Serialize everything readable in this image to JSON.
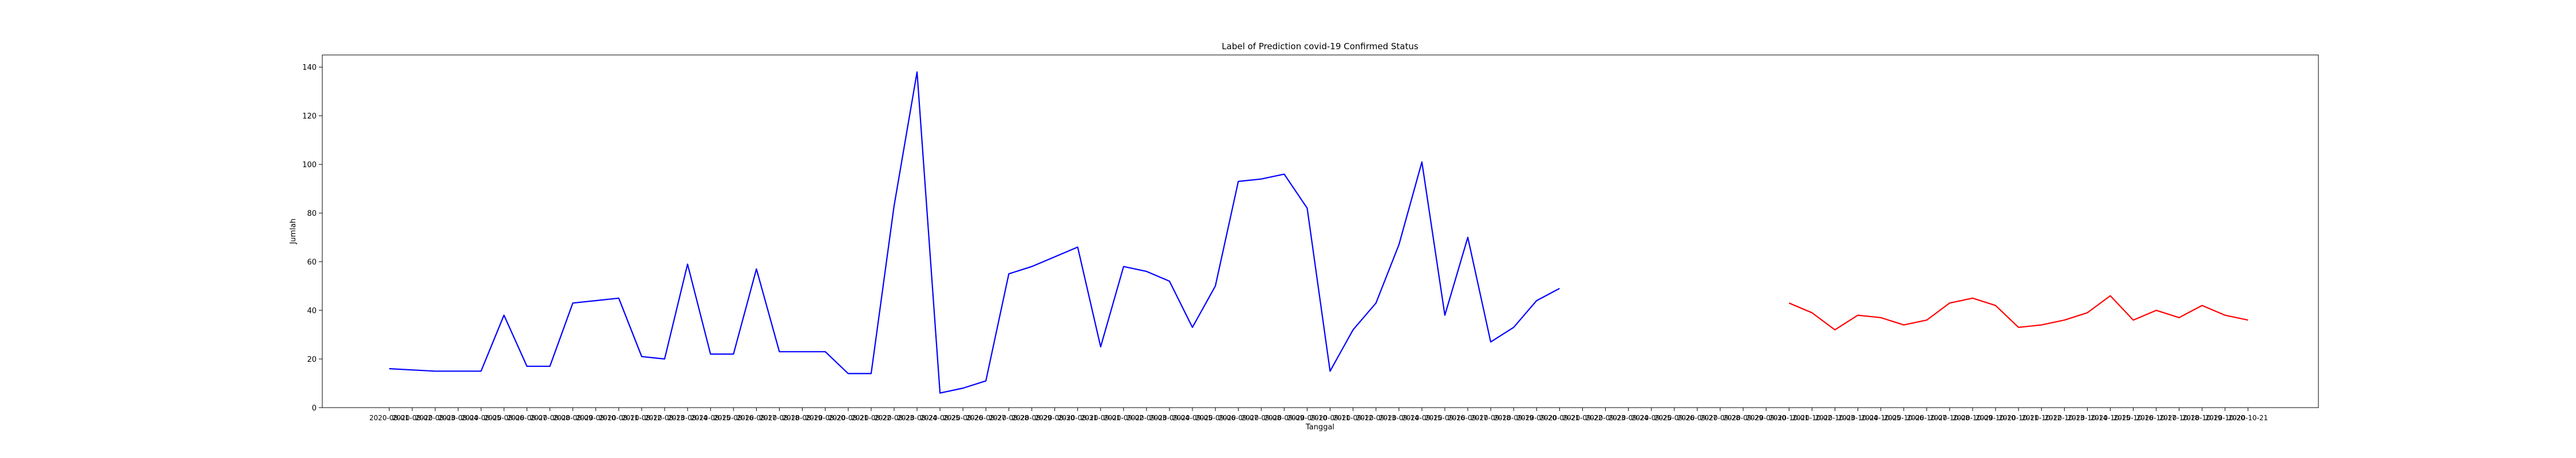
{
  "chart_data": {
    "type": "line",
    "title": "Label of Prediction covid-19 Confirmed Status",
    "xlabel": "Tanggal",
    "ylabel": "Jumlah",
    "ylim": [
      0,
      145
    ],
    "yticks": [
      0,
      20,
      40,
      60,
      80,
      100,
      120,
      140
    ],
    "grid": false,
    "series": [
      {
        "color": "#0000ff",
        "x": [
          "2020-08-01",
          "2020-08-02",
          "2020-08-03",
          "2020-08-04",
          "2020-08-05",
          "2020-08-06",
          "2020-08-07",
          "2020-08-08",
          "2020-08-09",
          "2020-08-10",
          "2020-08-11",
          "2020-08-12",
          "2020-08-13",
          "2020-08-14",
          "2020-08-15",
          "2020-08-16",
          "2020-08-17",
          "2020-08-18",
          "2020-08-19",
          "2020-08-20",
          "2020-08-21",
          "2020-08-22",
          "2020-08-23",
          "2020-08-24",
          "2020-08-25",
          "2020-08-26",
          "2020-08-27",
          "2020-08-28",
          "2020-08-29",
          "2020-08-30",
          "2020-08-31",
          "2020-09-01",
          "2020-09-02",
          "2020-09-03",
          "2020-09-04",
          "2020-09-05",
          "2020-09-06",
          "2020-09-07",
          "2020-09-08",
          "2020-09-09",
          "2020-09-10",
          "2020-09-11",
          "2020-09-12",
          "2020-09-13",
          "2020-09-14",
          "2020-09-15",
          "2020-09-16",
          "2020-09-17",
          "2020-09-18",
          "2020-09-19",
          "2020-09-20",
          "2020-09-21",
          "2020-09-22",
          "2020-09-23",
          "2020-09-24",
          "2020-09-25",
          "2020-09-26",
          "2020-09-27",
          "2020-09-28",
          "2020-09-29",
          "2020-09-30"
        ],
        "values": [
          16,
          15.5,
          15,
          15,
          15,
          38,
          17,
          17,
          43,
          44,
          45,
          21,
          20,
          59,
          22,
          22,
          57,
          23,
          23,
          23,
          14,
          14,
          83,
          138,
          6,
          8,
          11,
          55,
          58,
          62,
          66,
          25,
          58,
          56,
          52,
          33,
          50,
          93,
          94,
          96,
          82,
          15,
          32,
          43,
          67,
          101,
          38,
          70,
          27,
          33,
          44,
          49,
          null,
          null,
          null,
          null,
          null,
          null,
          null,
          null,
          null
        ]
      },
      {
        "color": "#ff0000",
        "x": [
          "2020-10-01",
          "2020-10-02",
          "2020-10-03",
          "2020-10-04",
          "2020-10-05",
          "2020-10-06",
          "2020-10-07",
          "2020-10-08",
          "2020-10-09",
          "2020-10-10",
          "2020-10-11",
          "2020-10-12",
          "2020-10-13",
          "2020-10-14",
          "2020-10-15",
          "2020-10-16",
          "2020-10-17",
          "2020-10-18",
          "2020-10-19",
          "2020-10-20",
          "2020-10-21"
        ],
        "values": [
          43,
          39,
          32,
          38,
          37,
          34,
          36,
          43,
          45,
          42,
          33,
          34,
          36,
          39,
          46,
          36,
          40,
          37,
          42,
          38,
          36
        ]
      }
    ],
    "x_tick_labels": [
      "2020-08-01",
      "2020-08-02",
      "2020-08-03",
      "2020-08-04",
      "2020-08-05",
      "2020-08-06",
      "2020-08-07",
      "2020-08-08",
      "2020-08-09",
      "2020-08-10",
      "2020-08-11",
      "2020-08-12",
      "2020-08-13",
      "2020-08-14",
      "2020-08-15",
      "2020-08-16",
      "2020-08-17",
      "2020-08-18",
      "2020-08-19",
      "2020-08-20",
      "2020-08-21",
      "2020-08-22",
      "2020-08-23",
      "2020-08-24",
      "2020-08-25",
      "2020-08-26",
      "2020-08-27",
      "2020-08-28",
      "2020-08-29",
      "2020-08-30",
      "2020-08-31",
      "2020-09-01",
      "2020-09-02",
      "2020-09-03",
      "2020-09-04",
      "2020-09-05",
      "2020-09-06",
      "2020-09-07",
      "2020-09-08",
      "2020-09-09",
      "2020-09-10",
      "2020-09-11",
      "2020-09-12",
      "2020-09-13",
      "2020-09-14",
      "2020-09-15",
      "2020-09-16",
      "2020-09-17",
      "2020-09-18",
      "2020-09-19",
      "2020-09-20",
      "2020-09-21",
      "2020-09-22",
      "2020-09-23",
      "2020-09-24",
      "2020-09-25",
      "2020-09-26",
      "2020-09-27",
      "2020-09-28",
      "2020-09-29",
      "2020-09-30",
      "2020-10-01",
      "2020-10-02",
      "2020-10-03",
      "2020-10-04",
      "2020-10-05",
      "2020-10-06",
      "2020-10-07",
      "2020-10-08",
      "2020-10-09",
      "2020-10-10",
      "2020-10-11",
      "2020-10-12",
      "2020-10-13",
      "2020-10-14",
      "2020-10-15",
      "2020-10-16",
      "2020-10-17",
      "2020-10-18",
      "2020-10-19",
      "2020-10-20",
      "2020-10-21"
    ]
  }
}
